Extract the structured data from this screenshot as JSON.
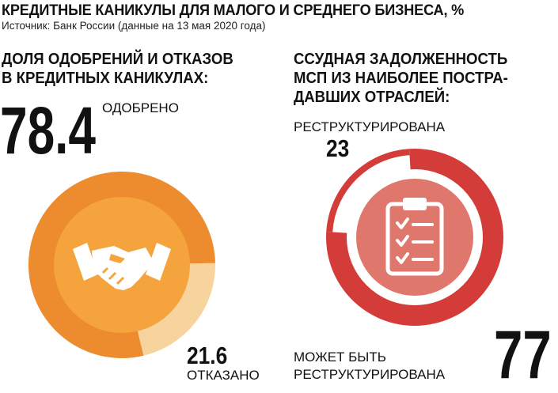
{
  "header": {
    "title": "КРЕДИТНЫЕ КАНИКУЛЫ ДЛЯ МАЛОГО И СРЕДНЕГО БИЗНЕСА, %",
    "source": "Источник: Банк России (данные на 13 мая 2020 года)"
  },
  "left": {
    "heading_line1": "ДОЛЯ ОДОБРЕНИЙ И ОТКАЗОВ",
    "heading_line2": "В КРЕДИТНЫХ КАНИКУЛАХ:",
    "approved_value": "78.4",
    "approved_label": "ОДОБРЕНО",
    "rejected_value": "21.6",
    "rejected_label": "ОТКАЗАНО",
    "icon": "handshake-icon",
    "colors": {
      "approved": "#ec8c2e",
      "rejected": "#f7d39e",
      "center": "#f5a33c"
    }
  },
  "right": {
    "heading_line1": "ССУДНАЯ ЗАДОЛЖЕННОСТЬ",
    "heading_line2": "МСП ИЗ НАИБОЛЕЕ ПОСТРА-",
    "heading_line3": "ДАВШИХ ОТРАСЛЕЙ:",
    "restructured_label": "РЕСТРУКТУРИРОВАНА",
    "restructured_value": "23",
    "can_be_label_line1": "МОЖЕТ БЫТЬ",
    "can_be_label_line2": "РЕСТРУКТУРИРОВАНА",
    "can_be_value": "77",
    "icon": "clipboard-checklist-icon",
    "colors": {
      "main": "#d43c3a",
      "center": "#e0776c"
    }
  },
  "chart_data": [
    {
      "type": "pie",
      "categories": [
        "ОДОБРЕНО",
        "ОТКАЗАНО"
      ],
      "values": [
        78.4,
        21.6
      ]
    },
    {
      "type": "pie",
      "categories": [
        "РЕСТРУКТУРИРОВАНА",
        "МОЖЕТ БЫТЬ РЕСТРУКТУРИРОВАНА"
      ],
      "values": [
        23,
        77
      ]
    }
  ]
}
